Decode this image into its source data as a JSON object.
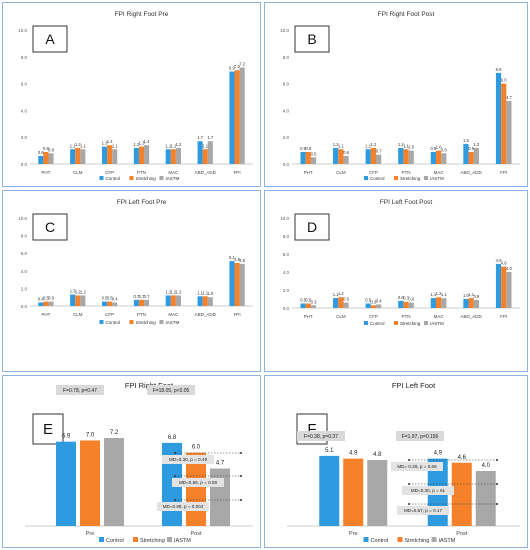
{
  "chart_data": [
    {
      "panel_label": "A",
      "type": "bar",
      "title": "FPI Right Foot Pre",
      "categories": [
        "PHT",
        "CLM",
        "CFP",
        "PTN",
        "MAC",
        "ABD_ADD",
        "FPI"
      ],
      "ylim": [
        0,
        10
      ],
      "yticks": [
        "0.0",
        "2.0",
        "4.0",
        "6.0",
        "8.0",
        "10.0"
      ],
      "grid": false,
      "legend_position": "bottom",
      "series": [
        {
          "name": "Control",
          "values": [
            0.6,
            1.1,
            1.3,
            1.2,
            1.1,
            1.7,
            6.9
          ],
          "labels": [
            "0.6",
            "1.1",
            "1.3",
            "1.2",
            "1.1",
            "1.7",
            "6.9"
          ]
        },
        {
          "name": "Stretching",
          "values": [
            0.9,
            1.2,
            1.4,
            1.3,
            1.1,
            1.1,
            7.0
          ],
          "labels": [
            "0.9",
            "1.2",
            "1.4",
            "1.3",
            "1.1",
            "1.1",
            "7.0"
          ]
        },
        {
          "name": "IASTM",
          "values": [
            0.8,
            1.1,
            1.1,
            1.4,
            1.2,
            1.7,
            7.2
          ],
          "labels": [
            "0.8",
            "1.1",
            "1.1",
            "1.4",
            "1.2",
            "1.7",
            "7.2"
          ]
        }
      ]
    },
    {
      "panel_label": "B",
      "type": "bar",
      "title": "FPI Right Foot Post",
      "categories": [
        "PHT",
        "CLM",
        "CFP",
        "PTN",
        "MAC",
        "ABD_ADD",
        "FPI"
      ],
      "ylim": [
        0,
        10
      ],
      "yticks": [
        "0.0",
        "2.0",
        "4.0",
        "6.0",
        "8.0",
        "10.0"
      ],
      "grid": false,
      "legend_position": "bottom",
      "series": [
        {
          "name": "Control",
          "values": [
            0.9,
            1.2,
            1.1,
            1.2,
            0.9,
            1.5,
            6.8
          ],
          "labels": [
            "0.9",
            "1.2",
            "1.1",
            "1.2",
            "0.9",
            "1.5",
            "6.8"
          ]
        },
        {
          "name": "Stretching",
          "values": [
            0.9,
            1.1,
            1.2,
            1.1,
            1.0,
            0.9,
            6.0
          ],
          "labels": [
            "0.9",
            "1.1",
            "1.2",
            "1.1",
            "1.0",
            "0.9",
            "6.0"
          ]
        },
        {
          "name": "IASTM",
          "values": [
            0.5,
            0.6,
            0.7,
            1.0,
            0.8,
            1.2,
            4.7
          ],
          "labels": [
            "0.5",
            "0.6",
            "0.7",
            "1.0",
            "0.8",
            "1.2",
            "4.7"
          ]
        }
      ]
    },
    {
      "panel_label": "C",
      "type": "bar",
      "title": "FPI Left Foot Pre",
      "categories": [
        "PHT",
        "CLM",
        "CFP",
        "PTN",
        "MAC",
        "ABD_ADD",
        "FPI"
      ],
      "ylim": [
        0,
        10
      ],
      "yticks": [
        "0.0",
        "2.0",
        "4.0",
        "6.0",
        "8.0",
        "10.0"
      ],
      "grid": false,
      "legend_position": "bottom",
      "series": [
        {
          "name": "Control",
          "values": [
            0.4,
            1.3,
            0.5,
            0.7,
            1.2,
            1.1,
            5.1
          ],
          "labels": [
            "0.4",
            "1.3",
            "0.5",
            "0.7",
            "1.2",
            "1.1",
            "5.1"
          ]
        },
        {
          "name": "Stretching",
          "values": [
            0.5,
            1.2,
            0.5,
            0.7,
            1.2,
            1.1,
            4.9
          ],
          "labels": [
            "0.5",
            "1.2",
            "0.5",
            "0.7",
            "1.2",
            "1.1",
            "4.9"
          ]
        },
        {
          "name": "IASTM",
          "values": [
            0.5,
            1.2,
            0.4,
            0.7,
            1.2,
            1.0,
            4.8
          ],
          "labels": [
            "0.5",
            "1.2",
            "0.4",
            "0.7",
            "1.2",
            "1.0",
            "4.8"
          ]
        }
      ]
    },
    {
      "panel_label": "D",
      "type": "bar",
      "title": "FPI Left Foot Post",
      "categories": [
        "PHT",
        "CLM",
        "CFP",
        "PTN",
        "MAC",
        "ABD_ADD",
        "FPI"
      ],
      "ylim": [
        0,
        10
      ],
      "yticks": [
        "0.0",
        "2.0",
        "4.0",
        "6.0",
        "8.0",
        "10.0"
      ],
      "grid": false,
      "legend_position": "bottom",
      "series": [
        {
          "name": "Control",
          "values": [
            0.5,
            1.1,
            0.5,
            0.8,
            1.1,
            1.0,
            4.9
          ],
          "labels": [
            "0.5",
            "1.1",
            "0.5",
            "0.8",
            "1.1",
            "1.0",
            "4.9"
          ]
        },
        {
          "name": "Stretching",
          "values": [
            0.5,
            1.2,
            0.3,
            0.7,
            1.2,
            1.1,
            4.6
          ],
          "labels": [
            "0.5",
            "1.2",
            "0.3",
            "0.7",
            "1.2",
            "1.1",
            "4.6"
          ]
        },
        {
          "name": "IASTM",
          "values": [
            0.3,
            0.6,
            0.4,
            0.6,
            1.1,
            0.9,
            4.0
          ],
          "labels": [
            "0.3",
            "0.6",
            "0.4",
            "0.6",
            "1.1",
            "0.9",
            "4.0"
          ]
        }
      ]
    },
    {
      "panel_label": "E",
      "type": "bar",
      "title": "FPI Right Foot",
      "categories": [
        "Pre",
        "Post"
      ],
      "ylim": [
        0,
        9
      ],
      "grid": false,
      "legend_position": "bottom",
      "series": [
        {
          "name": "Control",
          "values": [
            6.9,
            6.8
          ],
          "labels": [
            "6.9",
            "6.8"
          ]
        },
        {
          "name": "Stretching",
          "values": [
            7.0,
            6.0
          ],
          "labels": [
            "7.0",
            "6.0"
          ]
        },
        {
          "name": "IASTM",
          "values": [
            7.2,
            4.7
          ],
          "labels": [
            "7.2",
            "4.7"
          ]
        }
      ],
      "stats": [
        "F=0.78, p=0.47",
        "F=18.05, p<0.05"
      ],
      "annotations": [
        "MD=0.30, p = 0.49",
        "MD=0.58, p = 0.08",
        "MD=0.88, p = 0.004"
      ]
    },
    {
      "panel_label": "F",
      "type": "bar",
      "title": "FPI Left Foot",
      "categories": [
        "Pre",
        "Post"
      ],
      "ylim": [
        0,
        8
      ],
      "grid": false,
      "legend_position": "bottom",
      "series": [
        {
          "name": "Control",
          "values": [
            5.1,
            4.9
          ],
          "labels": [
            "5.1",
            "4.9"
          ]
        },
        {
          "name": "Stretching",
          "values": [
            4.9,
            4.6
          ],
          "labels": [
            "4.9",
            "4.6"
          ]
        },
        {
          "name": "IASTM",
          "values": [
            4.8,
            4.0
          ],
          "labels": [
            "4.8",
            "4.0"
          ]
        }
      ],
      "stats": [
        "F=0.38, p=0.37",
        "F=1.97, p=0.156"
      ],
      "annotations": [
        "MD= 0.29, p = 0.66",
        "MD=0.30, p = 61",
        "MD=0.57, p = 0.17"
      ]
    }
  ],
  "colors": {
    "Control": "#2e9be0",
    "Stretching": "#f5822a",
    "IASTM": "#a8a8a8"
  }
}
